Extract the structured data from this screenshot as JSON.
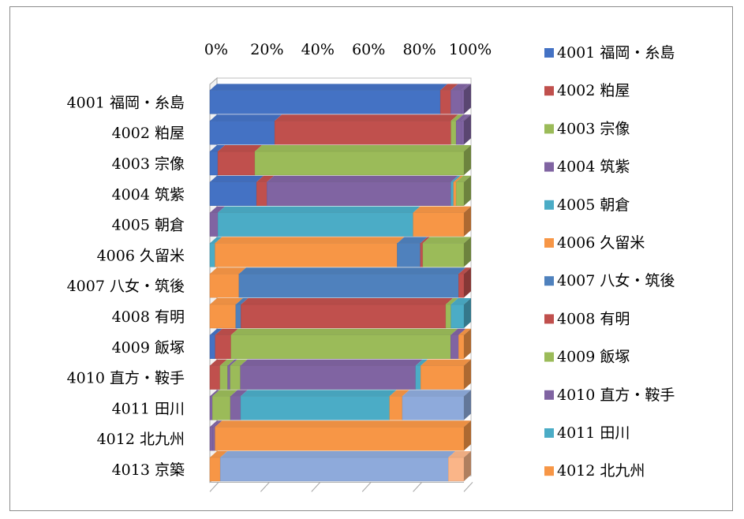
{
  "chart_data": {
    "type": "bar",
    "orientation": "horizontal",
    "stacked": "percent",
    "three_d": true,
    "title": "",
    "xlabel": "",
    "ylabel": "",
    "xlim": [
      0,
      100
    ],
    "x_ticks": [
      "0%",
      "20%",
      "40%",
      "60%",
      "80%",
      "100%"
    ],
    "x_axis_position": "top",
    "grid": false,
    "legend_placement": "right",
    "categories": [
      "4001 福岡・糸島",
      "4002 粕屋",
      "4003 宗像",
      "4004 筑紫",
      "4005 朝倉",
      "4006 久留米",
      "4007 八女・筑後",
      "4008 有明",
      "4009 飯塚",
      "4010 直方・鞍手",
      "4011 田川",
      "4012 北九州",
      "4013 京築"
    ],
    "series": [
      {
        "name": "4001 福岡・糸島",
        "color": "#4472c4",
        "values": [
          88,
          25,
          3,
          18,
          0,
          0,
          0,
          0,
          2,
          0,
          0,
          0,
          0
        ]
      },
      {
        "name": "4002 粕屋",
        "color": "#c0504d",
        "values": [
          4,
          68,
          14,
          4,
          0,
          0,
          0,
          0,
          6,
          4,
          0,
          0,
          0
        ]
      },
      {
        "name": "4003 宗像",
        "color": "#9bbb59",
        "values": [
          0,
          2,
          79,
          0,
          0,
          0,
          0,
          0,
          0,
          3,
          0,
          0,
          0
        ]
      },
      {
        "name": "4004 筑紫",
        "color": "#8064a2",
        "values": [
          4,
          2,
          0,
          71,
          3,
          0,
          0,
          0,
          0,
          1,
          1,
          1,
          0
        ]
      },
      {
        "name": "4005 朝倉",
        "color": "#4bacc6",
        "values": [
          0,
          0,
          0,
          1,
          73,
          2,
          0,
          0,
          0,
          0,
          0,
          0,
          0
        ]
      },
      {
        "name": "4006 久留米",
        "color": "#f79646",
        "values": [
          0,
          0,
          0,
          1,
          19,
          71,
          11,
          10,
          0,
          0,
          0,
          0,
          0
        ]
      },
      {
        "name": "4007 八女・筑後",
        "color": "#4f81bd",
        "values": [
          0,
          0,
          0,
          0,
          0,
          9,
          83,
          2,
          0,
          0,
          0,
          0,
          0
        ]
      },
      {
        "name": "4008 有明",
        "color": "#c0504d",
        "values": [
          0,
          0,
          0,
          0,
          0,
          1,
          2,
          79,
          0,
          0,
          0,
          0,
          0
        ]
      },
      {
        "name": "4009 飯塚",
        "color": "#9bbb59",
        "values": [
          0,
          0,
          0,
          3,
          0,
          16,
          0,
          2,
          83,
          4,
          7,
          0,
          0
        ]
      },
      {
        "name": "4010 直方・鞍手",
        "color": "#8064a2",
        "values": [
          1,
          1,
          0,
          0,
          0,
          0,
          0,
          0,
          3,
          69,
          4,
          1,
          0
        ]
      },
      {
        "name": "4011 田川",
        "color": "#4bacc6",
        "values": [
          0,
          0,
          0,
          0,
          0,
          0,
          0,
          5,
          0,
          2,
          58,
          0,
          0
        ]
      },
      {
        "name": "4012 北九州",
        "color": "#f79646",
        "values": [
          0,
          0,
          0,
          0,
          0,
          0,
          0,
          0,
          2,
          17,
          5,
          96,
          4
        ]
      },
      {
        "name": "4013 京築",
        "color": "#8eaadb",
        "values": [
          0,
          0,
          0,
          0,
          0,
          0,
          0,
          0,
          0,
          0,
          24,
          0,
          88
        ]
      },
      {
        "name": "",
        "color": "#fab588",
        "values": [
          0,
          0,
          0,
          0,
          0,
          0,
          0,
          0,
          0,
          0,
          0,
          0,
          6
        ]
      }
    ],
    "legend_entries": [
      "4001 福岡・糸島",
      "4002 粕屋",
      "4003 宗像",
      "4004 筑紫",
      "4005 朝倉",
      "4006 久留米",
      "4007 八女・筑後",
      "4008 有明",
      "4009 飯塚",
      "4010 直方・鞍手",
      "4011 田川",
      "4012 北九州"
    ]
  }
}
